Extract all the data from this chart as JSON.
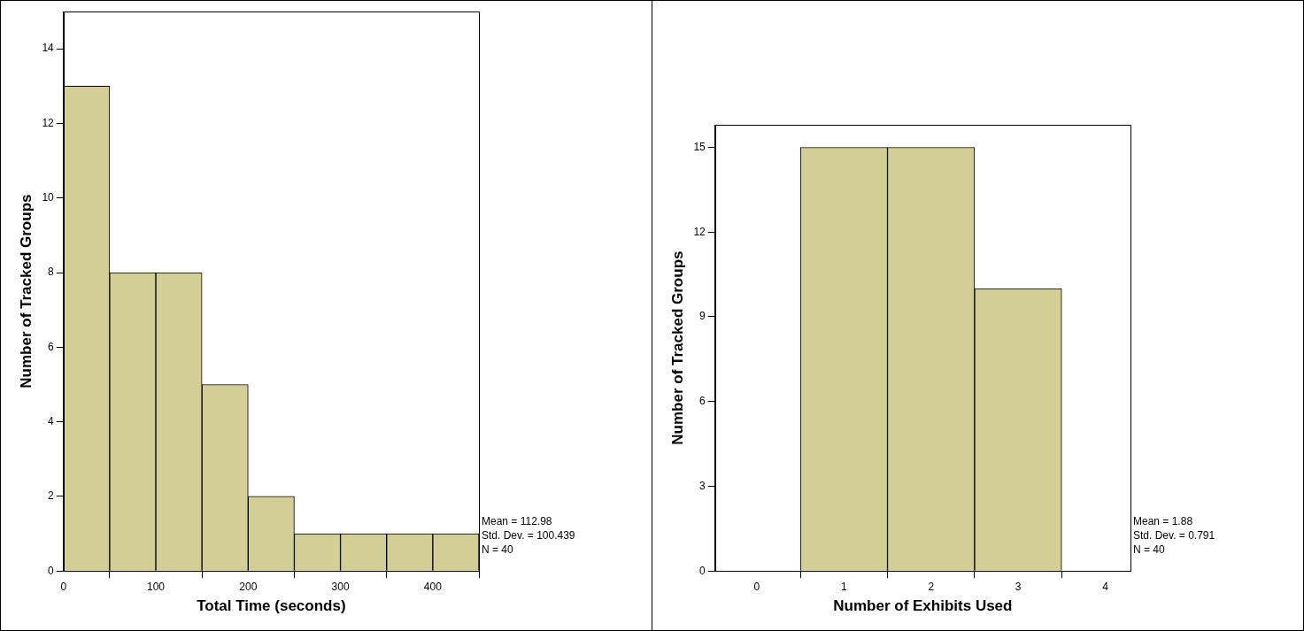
{
  "chart_data": [
    {
      "type": "histogram",
      "xlabel": "Total Time (seconds)",
      "ylabel": "Number of Tracked Groups",
      "bins": [
        0,
        50,
        100,
        150,
        200,
        250,
        300,
        350,
        400,
        450
      ],
      "values": [
        13,
        8,
        8,
        5,
        2,
        1,
        1,
        1,
        1
      ],
      "color": "#d3ce96",
      "xlim": [
        0,
        450
      ],
      "xticks": [
        0,
        100,
        200,
        300,
        400
      ],
      "ylim": [
        0,
        15
      ],
      "yticks": [
        0,
        2,
        4,
        6,
        8,
        10,
        12,
        14
      ],
      "grid": false,
      "legend": false,
      "annotations": [
        "Mean = 112.98",
        "Std. Dev. = 100.439",
        "N = 40"
      ]
    },
    {
      "type": "histogram",
      "xlabel": "Number of Exhibits Used",
      "ylabel": "Number of Tracked Groups",
      "bins": [
        0.5,
        1.5,
        2.5,
        3.5
      ],
      "values": [
        15,
        15,
        10
      ],
      "color": "#d3ce96",
      "xlim": [
        -0.48,
        4.29
      ],
      "xticks": [
        0,
        1,
        2,
        3,
        4
      ],
      "ylim": [
        0,
        15.8
      ],
      "yticks": [
        0,
        3,
        6,
        9,
        12,
        15
      ],
      "grid": false,
      "legend": false,
      "annotations": [
        "Mean = 1.88",
        "Std. Dev. = 0.791",
        "N = 40"
      ]
    }
  ]
}
